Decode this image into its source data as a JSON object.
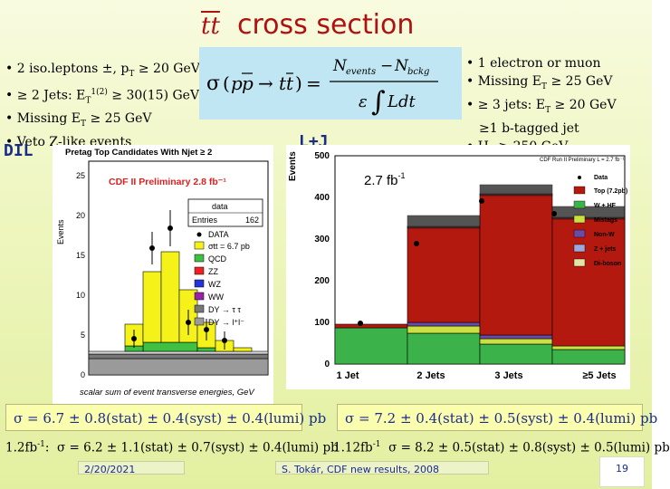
{
  "title": {
    "symbol": "tt",
    "text": "cross section"
  },
  "dil": {
    "tag": "DIL",
    "cuts": [
      "• 2 iso.leptons ±, pT ≥ 20 GeV",
      "• ≥ 2 Jets: ET1(2) ≥ 30(15) GeV",
      "• Missing ET ≥ 25 GeV",
      "• Veto Z-like events"
    ],
    "plot": {
      "title": "Pretag Top Candidates With Njet ≥ 2",
      "ylabel": "Events",
      "xlabel": "scalar sum of event transverse energies, GeV",
      "preliminary": "CDF II Preliminary 2.8 fb⁻¹",
      "stats": {
        "name": "data",
        "entries_label": "Entries",
        "entries_value": "162"
      },
      "legend": [
        "DATA",
        "σtt = 6.7 pb",
        "QCD",
        "ZZ",
        "WZ",
        "WW",
        "DY → τ τ",
        "DY → l⁺l⁻"
      ],
      "yticks": [
        "0",
        "5",
        "10",
        "15",
        "20",
        "25"
      ]
    },
    "result": "σ = 6.7 ± 0.8(stat) ± 0.4(syst) ± 0.4(lumi) pb",
    "lumi_line": "1.2fb-1: σ = 6.2 ± 1.1(stat) ± 0.7(syst) ± 0.4(lumi) pb"
  },
  "lj": {
    "tag": "L+J",
    "cuts": [
      "• 1 electron or muon",
      "• Missing ET ≥ 25 GeV",
      "• ≥ 3 jets: ET ≥ 20 GeV",
      "≥1 b-tagged jet",
      "• HT ≥ 250 GeV"
    ],
    "plot": {
      "ylabel": "Events",
      "lumi_label": "2.7 fb-1",
      "preliminary": "CDF Run II Preliminary L = 2.7 fb⁻¹",
      "categories": [
        "1 Jet",
        "2 Jets",
        "3 Jets",
        "≥5 Jets"
      ],
      "yticks": [
        "0",
        "100",
        "200",
        "300",
        "400",
        "500"
      ],
      "legend": [
        "Data",
        "Top (7.2pb)",
        "W + HF",
        "Mistags",
        "Non-W",
        "Z + jets",
        "Di-boson"
      ]
    },
    "result": "σ = 7.2 ± 0.4(stat) ± 0.5(syst) ± 0.4(lumi) pb",
    "lumi_line": "1.12fb-1 σ = 8.2 ± 0.5(stat) ± 0.8(syst) ± 0.5(lumi) pb"
  },
  "footer": {
    "date": "2/20/2021",
    "center": "S. Tokár, CDF new results, 2008",
    "page": "19"
  },
  "colors": {
    "title": "#b01010",
    "tag": "#1a2b8a",
    "formula_bg": "#bfe6f2",
    "result_bg": "#fafcae",
    "top": "#b3190f",
    "w_hf": "#3bb34a",
    "mistags": "#cde043",
    "non_w": "#6b4ba3",
    "z_jets": "#9fa8d8",
    "diboson": "#e6e1a6"
  }
}
